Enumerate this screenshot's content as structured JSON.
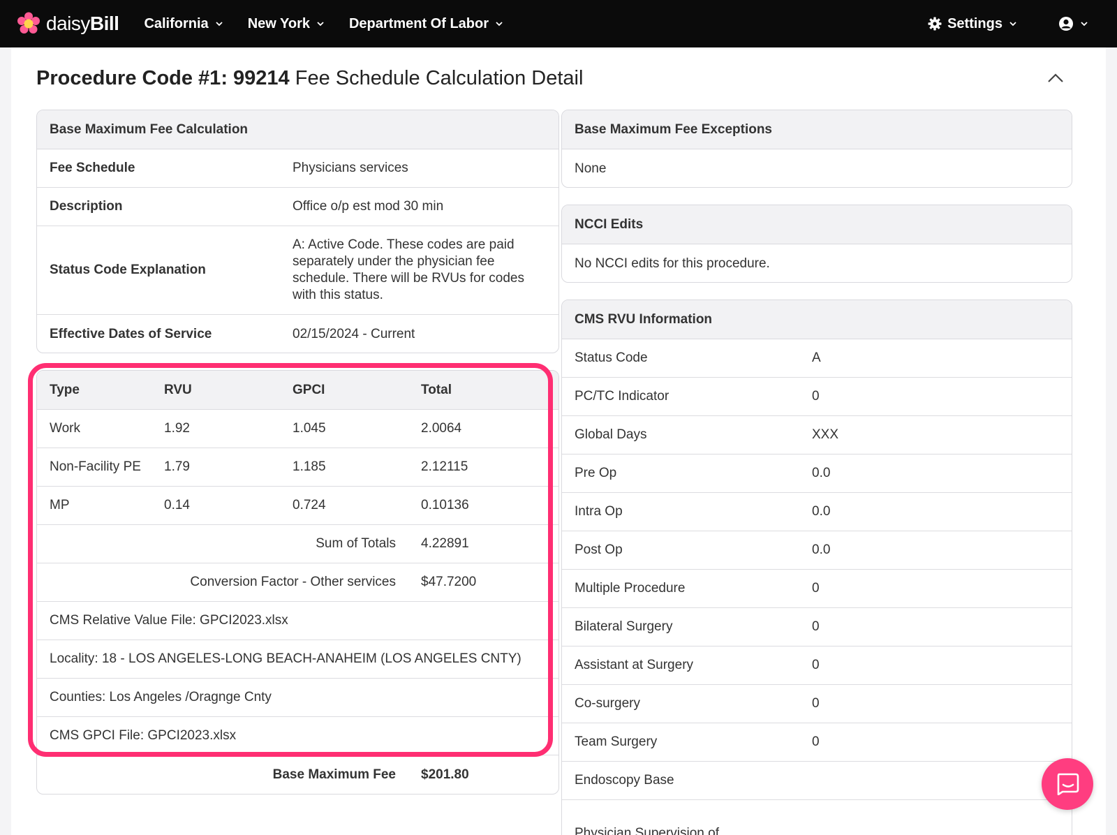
{
  "nav": {
    "logo_daisy": "daisy",
    "logo_bill": "Bill",
    "items": [
      {
        "label": "California"
      },
      {
        "label": "New York"
      },
      {
        "label": "Department Of Labor"
      }
    ],
    "settings_label": "Settings"
  },
  "page": {
    "title_bold": "Procedure Code #1: 99214",
    "title_rest": " Fee Schedule Calculation Detail"
  },
  "base_calc": {
    "header": "Base Maximum Fee Calculation",
    "rows": [
      {
        "label": "Fee Schedule",
        "value": "Physicians services"
      },
      {
        "label": "Description",
        "value": "Office o/p est mod 30 min"
      },
      {
        "label": "Status Code Explanation",
        "value": "A: Active Code. These codes are paid separately under the physician fee schedule. There will be RVUs for codes with this status."
      },
      {
        "label": "Effective Dates of Service",
        "value": "02/15/2024 - Current"
      }
    ]
  },
  "rvu_table": {
    "headers": [
      "Type",
      "RVU",
      "GPCI",
      "Total"
    ],
    "rows": [
      [
        "Work",
        "1.92",
        "1.045",
        "2.0064"
      ],
      [
        "Non-Facility PE",
        "1.79",
        "1.185",
        "2.12115"
      ],
      [
        "MP",
        "0.14",
        "0.724",
        "0.10136"
      ]
    ],
    "sum_label": "Sum of Totals",
    "sum_value": "4.22891",
    "cf_label": "Conversion Factor - Other services",
    "cf_value": "$47.7200",
    "notes": [
      "CMS Relative Value File: GPCI2023.xlsx",
      "Locality: 18 - LOS ANGELES-LONG BEACH-ANAHEIM (LOS ANGELES CNTY)",
      "Counties: Los Angeles /Oragnge Cnty",
      "CMS GPCI File: GPCI2023.xlsx"
    ],
    "base_fee_label": "Base Maximum Fee",
    "base_fee_value": "$201.80"
  },
  "exceptions": {
    "header": "Base Maximum Fee Exceptions",
    "value": "None"
  },
  "ncci": {
    "header": "NCCI Edits",
    "value": "No NCCI edits for this procedure."
  },
  "cms_rvu": {
    "header": "CMS RVU Information",
    "rows": [
      {
        "label": "Status Code",
        "value": "A"
      },
      {
        "label": "PC/TC Indicator",
        "value": "0"
      },
      {
        "label": "Global Days",
        "value": "XXX"
      },
      {
        "label": "Pre Op",
        "value": "0.0"
      },
      {
        "label": "Intra Op",
        "value": "0.0"
      },
      {
        "label": "Post Op",
        "value": "0.0"
      },
      {
        "label": "Multiple Procedure",
        "value": "0"
      },
      {
        "label": "Bilateral Surgery",
        "value": "0"
      },
      {
        "label": "Assistant at Surgery",
        "value": "0"
      },
      {
        "label": "Co-surgery",
        "value": "0"
      },
      {
        "label": "Team Surgery",
        "value": "0"
      },
      {
        "label": "Endoscopy Base",
        "value": ""
      },
      {
        "label": "Physician Supervision of",
        "value": ""
      }
    ]
  },
  "colors": {
    "nav_bg": "#0b0b0b",
    "highlight": "#ff2e72",
    "chat": "#ff3d80",
    "logo_petal": "#ff4f8b"
  }
}
